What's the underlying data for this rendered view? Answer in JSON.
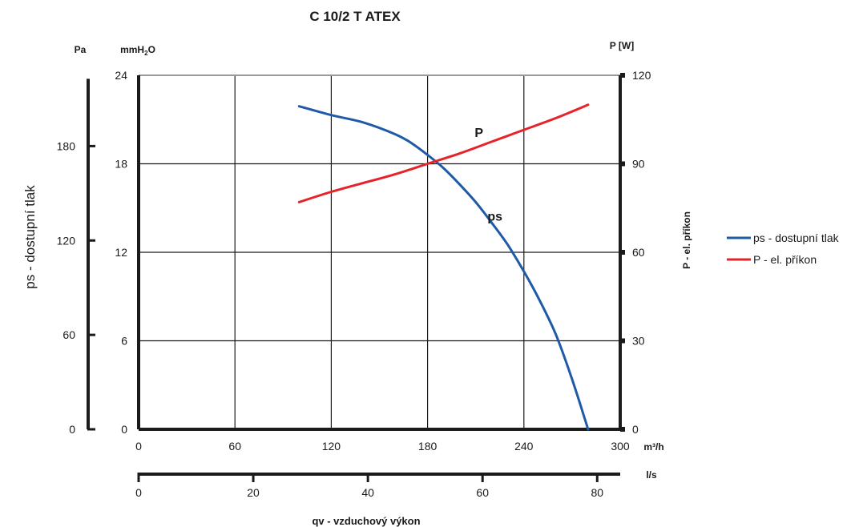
{
  "chart_data": {
    "type": "line",
    "title": "C 10/2 T ATEX",
    "xlabel": "qv - vzduchový výkon",
    "x_unit_primary": "m³/h",
    "x_unit_secondary": "l/s",
    "xlim": [
      0,
      300
    ],
    "x_ticks": [
      0,
      60,
      120,
      180,
      240,
      300
    ],
    "x2_ticks": [
      0,
      20,
      40,
      60,
      80
    ],
    "ylabel_left": "ps - dostupní tlak",
    "y_unit_pa": "Pa",
    "y_unit_mmh2o_main": "mmH",
    "y_unit_mmh2o_sub": "2",
    "y_unit_mmh2o_tail": "O",
    "ylim_mmh2o": [
      0,
      24
    ],
    "y_ticks_mmh2o": [
      0,
      6,
      12,
      18,
      24
    ],
    "y_ticks_pa": [
      0,
      60,
      120,
      180
    ],
    "ylabel_right": "P - el. příkon",
    "y_unit_right": "P [W]",
    "ylim_right": [
      0,
      120
    ],
    "y_ticks_right": [
      0,
      30,
      60,
      90,
      120
    ],
    "grid": true,
    "legend_position": "right",
    "series": [
      {
        "name": "ps - dostupní tlak",
        "label": "ps",
        "color": "#1f5aa6",
        "axis": "left_mmh2o",
        "x": [
          100,
          120,
          140,
          160,
          170,
          180,
          190,
          200,
          210,
          220,
          230,
          240,
          250,
          260,
          270,
          280
        ],
        "y": [
          21.9,
          21.3,
          20.8,
          20.0,
          19.4,
          18.6,
          17.7,
          16.6,
          15.4,
          14.0,
          12.5,
          10.7,
          8.7,
          6.4,
          3.4,
          0
        ]
      },
      {
        "name": "P - el. příkon",
        "label": "P",
        "color": "#e52329",
        "axis": "right",
        "x": [
          100,
          120,
          140,
          160,
          180,
          200,
          220,
          240,
          260,
          280
        ],
        "y": [
          77,
          80.5,
          83.5,
          86.5,
          90,
          93.5,
          97.5,
          101.5,
          105.5,
          110
        ]
      }
    ]
  }
}
